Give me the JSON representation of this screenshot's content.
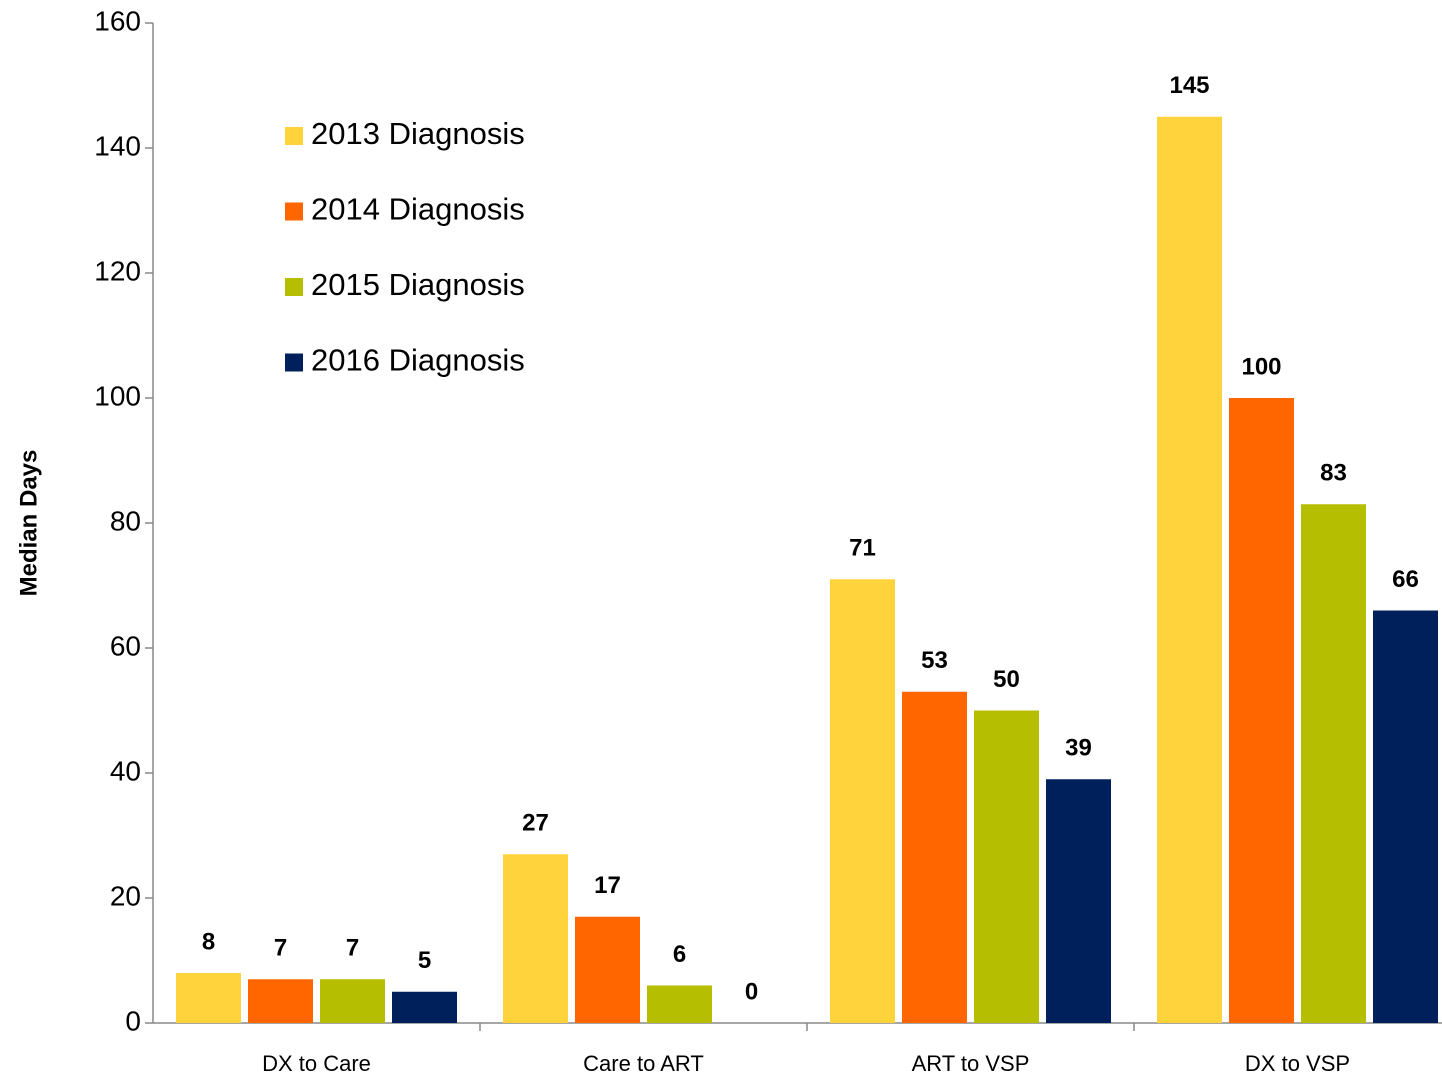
{
  "chart_data": {
    "type": "bar",
    "y_label": "Median Days",
    "categories": [
      "DX to Care",
      "Care to ART",
      "ART to VSP",
      "DX to VSP"
    ],
    "series": [
      {
        "name": "2013 Diagnosis",
        "color": "#FFD33C",
        "values": [
          8,
          27,
          71,
          145
        ]
      },
      {
        "name": "2014 Diagnosis",
        "color": "#FF6600",
        "values": [
          7,
          17,
          53,
          100
        ]
      },
      {
        "name": "2015 Diagnosis",
        "color": "#B5BE00",
        "values": [
          7,
          6,
          50,
          83
        ]
      },
      {
        "name": "2016 Diagnosis",
        "color": "#00205C",
        "values": [
          5,
          0,
          39,
          66
        ]
      }
    ],
    "ylim": [
      0,
      160
    ],
    "yticks": [
      0,
      20,
      40,
      60,
      80,
      100,
      120,
      140,
      160
    ],
    "grid": false,
    "legend": "upper left"
  }
}
